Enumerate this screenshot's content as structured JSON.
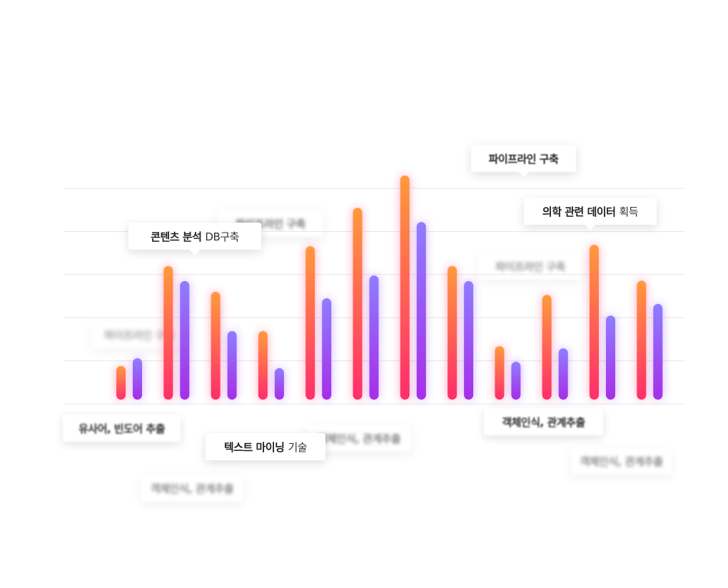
{
  "chart_data": {
    "type": "bar",
    "categories": [
      null,
      null,
      null,
      null,
      null,
      null,
      null,
      null,
      null,
      null,
      null,
      null
    ],
    "series": [
      {
        "color": "#ff9a3c",
        "values": [
          0.78,
          3.1,
          2.5,
          1.59,
          3.56,
          4.45,
          5.2,
          3.1,
          1.24,
          2.43,
          3.59,
          2.76
        ]
      },
      {
        "color": "#8f7dff",
        "values": [
          0.96,
          2.75,
          1.59,
          0.73,
          2.35,
          2.88,
          4.12,
          2.75,
          0.88,
          1.19,
          1.95,
          2.22
        ]
      }
    ],
    "ylim": [
      0,
      5.5
    ],
    "yticks": [
      0,
      1,
      2,
      3,
      4,
      5
    ],
    "grid": true,
    "annotations": [
      {
        "strong": "콘텐츠 분석",
        "normal": "DB구축"
      },
      {
        "strong": "텍스트 마이닝",
        "normal": "기술"
      },
      {
        "strong": "의학 관련 데이터",
        "normal": "획득"
      },
      {
        "strong": "파이프라인 구축"
      },
      {
        "strong": "유사어, 빈도어 추출"
      },
      {
        "strong": "객체인식, 관계추출"
      },
      {
        "strong": "파이프라인 구축"
      },
      {
        "strong": "파이프라인 구축"
      },
      {
        "strong": "파이프라인 구축"
      },
      {
        "strong": "객체인식, 관계추출"
      },
      {
        "strong": "객체인식, 관계추출"
      },
      {
        "strong": "객체인식, 관계추출"
      }
    ]
  }
}
